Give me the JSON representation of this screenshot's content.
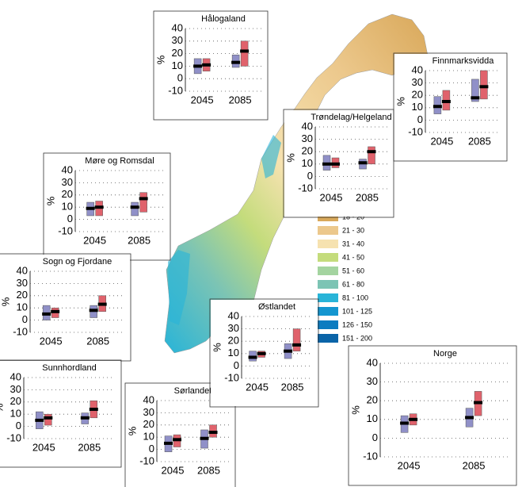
{
  "chart_data": [
    {
      "type": "box",
      "title": "Hålogaland",
      "ylabel": "%",
      "categories": [
        "2045",
        "2085"
      ],
      "ylim": [
        -10,
        40
      ],
      "yticks": [
        -10,
        0,
        10,
        20,
        30,
        40
      ],
      "grid": true,
      "series": [
        {
          "color": "#9090c8",
          "low": [
            4,
            9
          ],
          "median": [
            10,
            13
          ],
          "high": [
            16,
            19
          ]
        },
        {
          "color": "#e0626c",
          "low": [
            6,
            10
          ],
          "median": [
            11,
            22
          ],
          "high": [
            16,
            30
          ]
        }
      ]
    },
    {
      "type": "box",
      "title": "Finnmarksvidda",
      "ylabel": "%",
      "categories": [
        "2045",
        "2085"
      ],
      "ylim": [
        -10,
        40
      ],
      "yticks": [
        -10,
        0,
        10,
        20,
        30,
        40
      ],
      "grid": true,
      "series": [
        {
          "color": "#9090c8",
          "low": [
            5,
            15
          ],
          "median": [
            11,
            18
          ],
          "high": [
            19,
            33
          ]
        },
        {
          "color": "#e0626c",
          "low": [
            8,
            17
          ],
          "median": [
            15,
            27
          ],
          "high": [
            24,
            40
          ]
        }
      ]
    },
    {
      "type": "box",
      "title": "Trøndelag/Helgeland",
      "ylabel": "%",
      "categories": [
        "2045",
        "2085"
      ],
      "ylim": [
        -10,
        40
      ],
      "yticks": [
        -10,
        0,
        10,
        20,
        30,
        40
      ],
      "grid": true,
      "series": [
        {
          "color": "#9090c8",
          "low": [
            5,
            6
          ],
          "median": [
            10,
            11
          ],
          "high": [
            17,
            14
          ]
        },
        {
          "color": "#e0626c",
          "low": [
            7,
            10
          ],
          "median": [
            10,
            20
          ],
          "high": [
            15,
            24
          ]
        }
      ]
    },
    {
      "type": "box",
      "title": "Møre og Romsdal",
      "ylabel": "%",
      "categories": [
        "2045",
        "2085"
      ],
      "ylim": [
        -10,
        40
      ],
      "yticks": [
        -10,
        0,
        10,
        20,
        30,
        40
      ],
      "grid": true,
      "series": [
        {
          "color": "#9090c8",
          "low": [
            3,
            3
          ],
          "median": [
            9,
            10
          ],
          "high": [
            14,
            14
          ]
        },
        {
          "color": "#e0626c",
          "low": [
            3,
            6
          ],
          "median": [
            10,
            17
          ],
          "high": [
            15,
            22
          ]
        }
      ]
    },
    {
      "type": "box",
      "title": "Sogn og Fjordane",
      "ylabel": "%",
      "categories": [
        "2045",
        "2085"
      ],
      "ylim": [
        -10,
        40
      ],
      "yticks": [
        -10,
        0,
        10,
        20,
        30,
        40
      ],
      "grid": true,
      "series": [
        {
          "color": "#9090c8",
          "low": [
            0,
            2
          ],
          "median": [
            5,
            8
          ],
          "high": [
            12,
            12
          ]
        },
        {
          "color": "#e0626c",
          "low": [
            2,
            7
          ],
          "median": [
            7,
            13
          ],
          "high": [
            10,
            20
          ]
        }
      ]
    },
    {
      "type": "box",
      "title": "Sunnhordland",
      "ylabel": "%",
      "categories": [
        "2045",
        "2085"
      ],
      "ylim": [
        -10,
        40
      ],
      "yticks": [
        -10,
        0,
        10,
        20,
        30,
        40
      ],
      "grid": true,
      "series": [
        {
          "color": "#9090c8",
          "low": [
            -2,
            2
          ],
          "median": [
            5,
            7
          ],
          "high": [
            12,
            11
          ]
        },
        {
          "color": "#e0626c",
          "low": [
            1,
            7
          ],
          "median": [
            7,
            14
          ],
          "high": [
            10,
            21
          ]
        }
      ]
    },
    {
      "type": "box",
      "title": "Sørlandet",
      "ylabel": "%",
      "categories": [
        "2045",
        "2085"
      ],
      "ylim": [
        -10,
        40
      ],
      "yticks": [
        -10,
        0,
        10,
        20,
        30,
        40
      ],
      "grid": true,
      "series": [
        {
          "color": "#9090c8",
          "low": [
            -2,
            1
          ],
          "median": [
            5,
            9
          ],
          "high": [
            11,
            16
          ]
        },
        {
          "color": "#e0626c",
          "low": [
            2,
            10
          ],
          "median": [
            8,
            14
          ],
          "high": [
            12,
            20
          ]
        }
      ]
    },
    {
      "type": "box",
      "title": "Østlandet",
      "ylabel": "%",
      "categories": [
        "2045",
        "2085"
      ],
      "ylim": [
        -10,
        40
      ],
      "yticks": [
        -10,
        0,
        10,
        20,
        30,
        40
      ],
      "grid": true,
      "series": [
        {
          "color": "#9090c8",
          "low": [
            4,
            6
          ],
          "median": [
            7,
            12
          ],
          "high": [
            12,
            18
          ]
        },
        {
          "color": "#e0626c",
          "low": [
            7,
            12
          ],
          "median": [
            10,
            17
          ],
          "high": [
            12,
            30
          ]
        }
      ]
    },
    {
      "type": "box",
      "title": "Norge",
      "ylabel": "%",
      "categories": [
        "2045",
        "2085"
      ],
      "ylim": [
        -10,
        40
      ],
      "yticks": [
        -10,
        0,
        10,
        20,
        30,
        40
      ],
      "grid": true,
      "series": [
        {
          "color": "#9090c8",
          "low": [
            3,
            6
          ],
          "median": [
            8,
            11
          ],
          "high": [
            12,
            16
          ]
        },
        {
          "color": "#e0626c",
          "low": [
            7,
            12
          ],
          "median": [
            10,
            19
          ],
          "high": [
            13,
            25
          ]
        }
      ]
    }
  ],
  "map_legend": [
    {
      "label": "18 - 20",
      "color": "#d9a85a"
    },
    {
      "label": "21 - 30",
      "color": "#ecc88c"
    },
    {
      "label": "31 - 40",
      "color": "#f6e2b0"
    },
    {
      "label": "41 - 50",
      "color": "#c4dc7c"
    },
    {
      "label": "51 - 60",
      "color": "#a4d4a0"
    },
    {
      "label": "61 - 80",
      "color": "#7cc4b4"
    },
    {
      "label": "81 - 100",
      "color": "#28b4d8"
    },
    {
      "label": "101 - 125",
      "color": "#1496d0"
    },
    {
      "label": "126 - 150",
      "color": "#0c7cc0"
    },
    {
      "label": "151 - 200",
      "color": "#0a64a8"
    }
  ]
}
